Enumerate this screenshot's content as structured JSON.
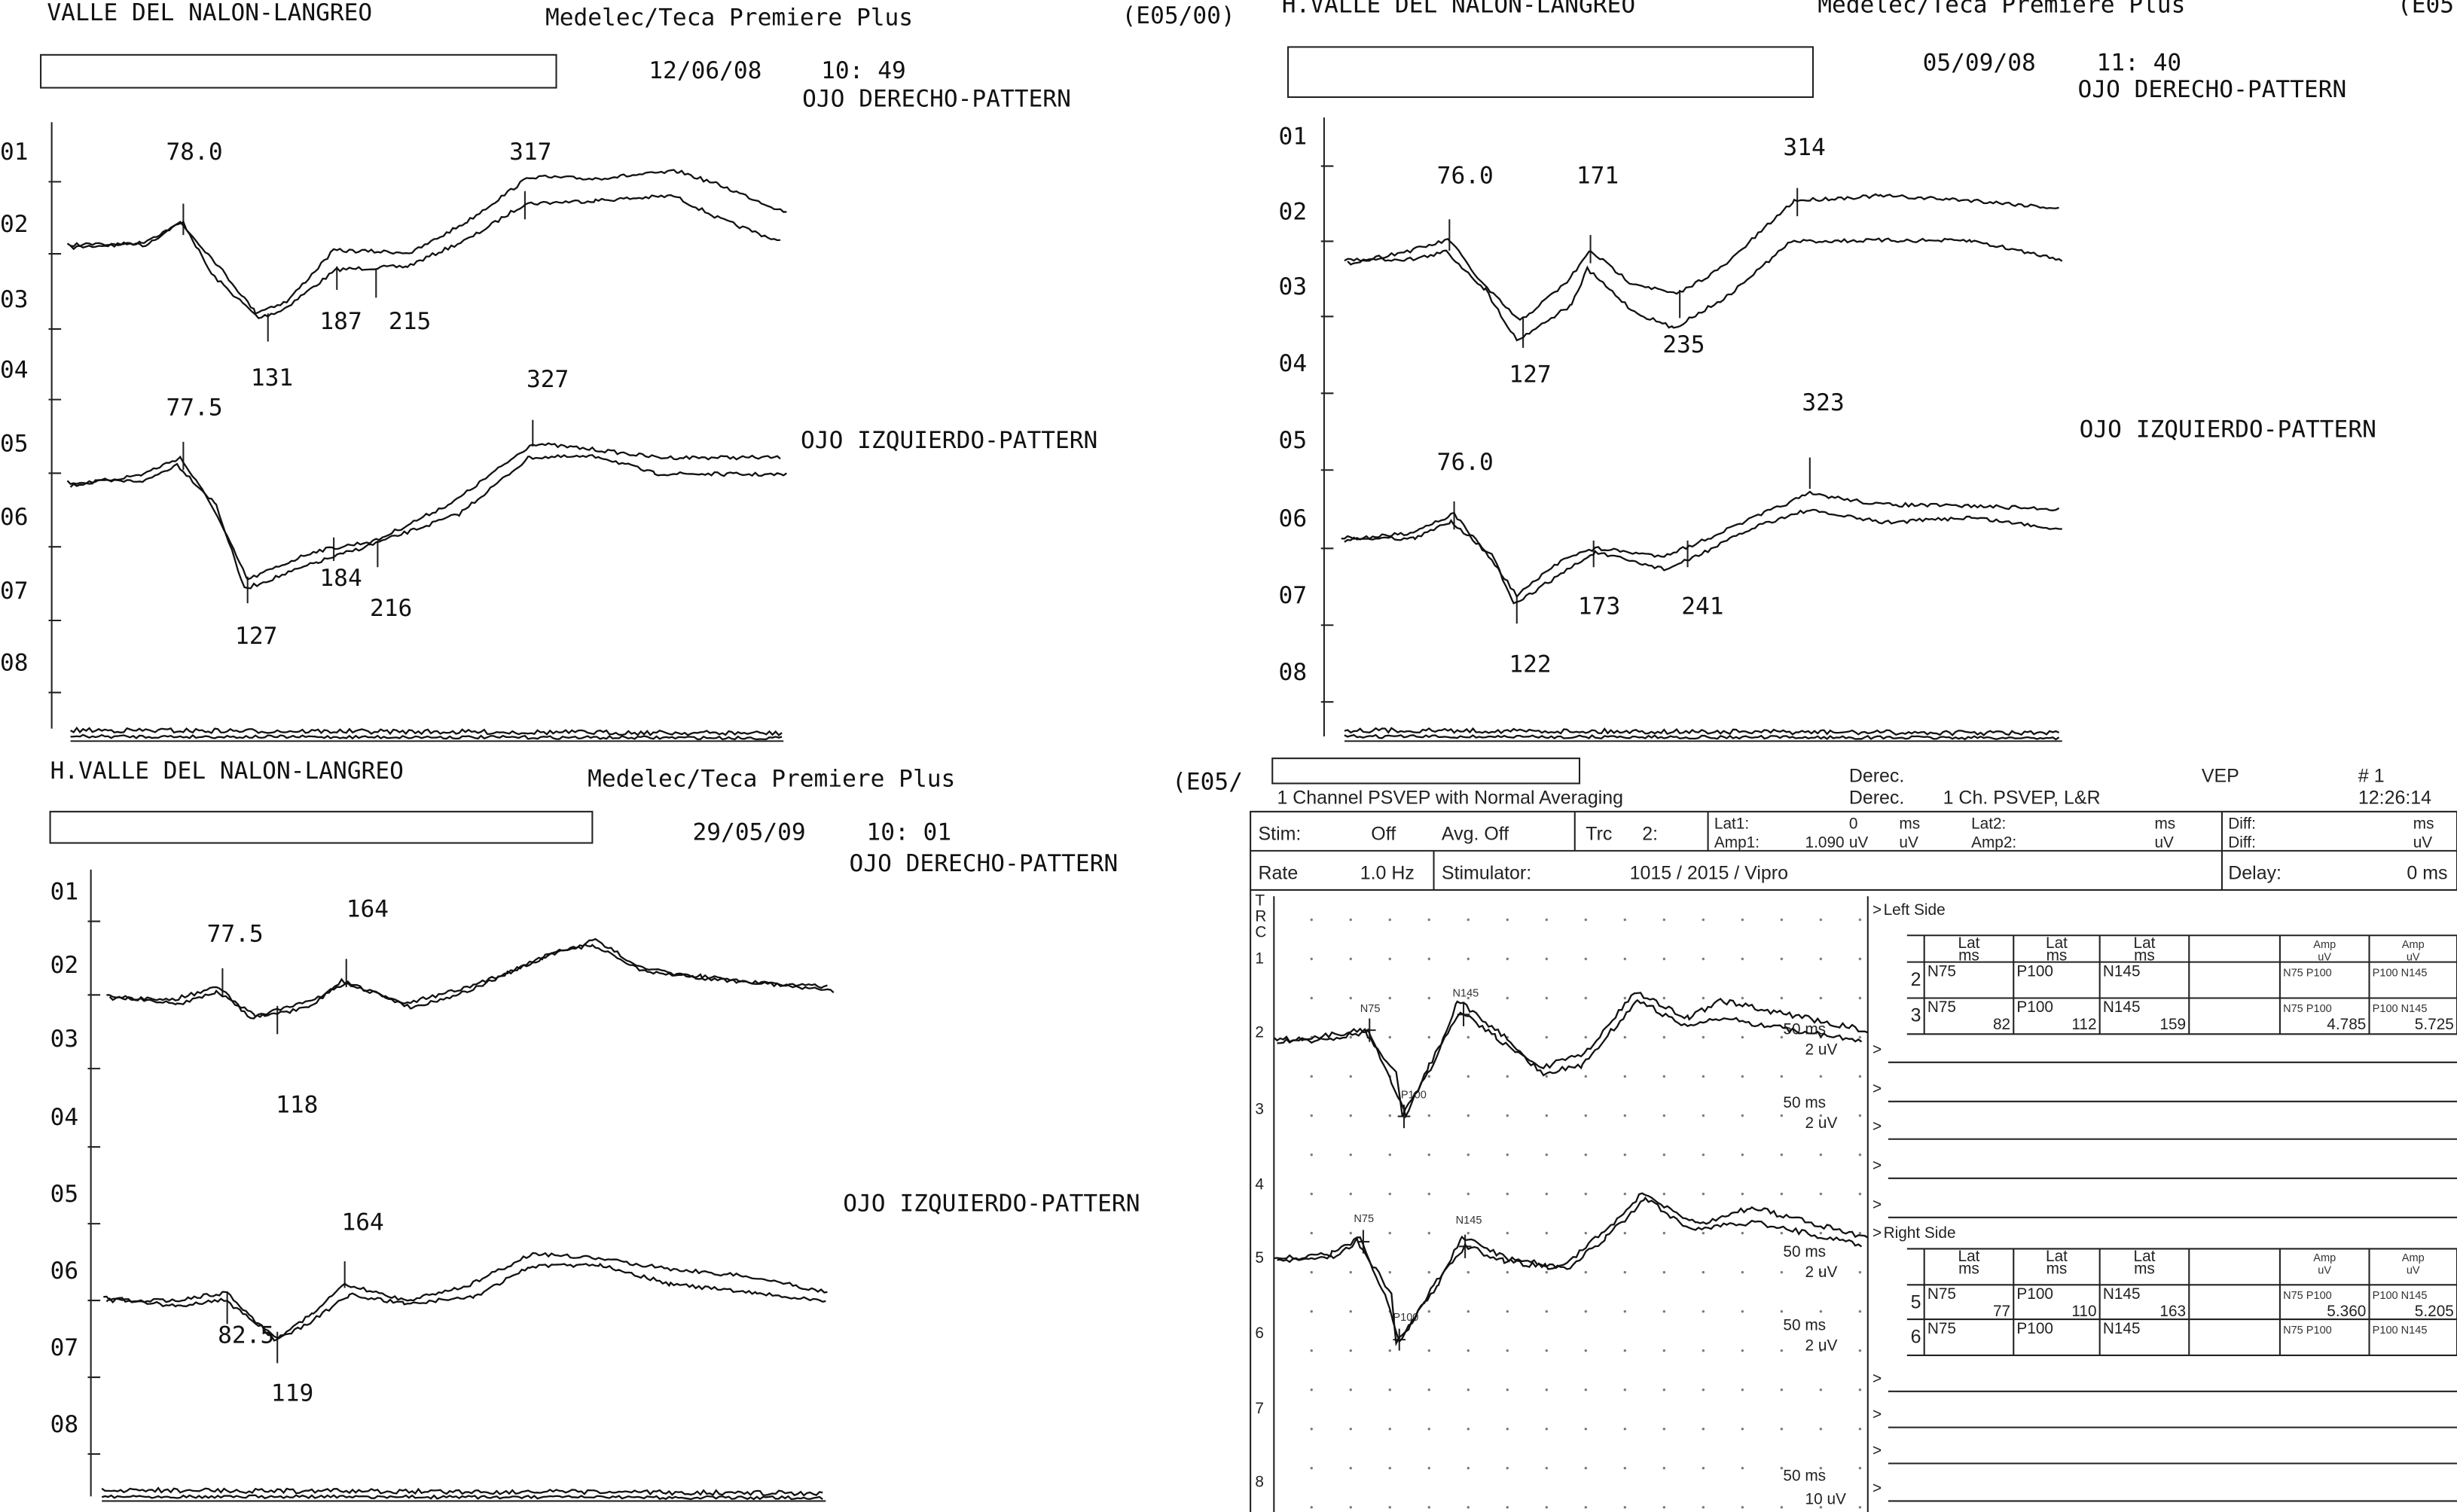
{
  "panels": [
    {
      "hospital": "VALLE DEL NALON-LANGREO",
      "device": "Medelec/Teca Premiere Plus",
      "code": "(E05/00)",
      "date": "12/06/08",
      "time": "10: 49",
      "right_eye": "OJO DERECHO-PATTERN",
      "left_eye": "OJO IZQUIERDO-PATTERN",
      "channels": [
        "01",
        "02",
        "03",
        "04",
        "05",
        "06",
        "07",
        "08"
      ],
      "peaks": [
        "78.0",
        "317",
        "187",
        "215",
        "131",
        "77.5",
        "327",
        "184",
        "216",
        "127"
      ]
    },
    {
      "hospital": "H.VALLE DEL NALON-LANGREO",
      "device": "Medelec/Teca Premiere Plus",
      "code": "(E05",
      "date": "05/09/08",
      "time": "11: 40",
      "right_eye": "OJO DERECHO-PATTERN",
      "left_eye": "OJO IZQUIERDO-PATTERN",
      "channels": [
        "01",
        "02",
        "03",
        "04",
        "05",
        "06",
        "07",
        "08"
      ],
      "peaks": [
        "76.0",
        "171",
        "314",
        "235",
        "127",
        "323",
        "76.0",
        "173",
        "241",
        "122"
      ]
    },
    {
      "hospital": "H.VALLE DEL NALON-LANGREO",
      "device": "Medelec/Teca Premiere Plus",
      "code": "(E05/",
      "date": "29/05/09",
      "time": "10: 01",
      "right_eye": "OJO DERECHO-PATTERN",
      "left_eye": "OJO IZQUIERDO-PATTERN",
      "channels": [
        "01",
        "02",
        "03",
        "04",
        "05",
        "06",
        "07",
        "08"
      ],
      "peaks": [
        "77.5",
        "164",
        "118",
        "164",
        "82.5",
        "119"
      ]
    }
  ],
  "report": {
    "title": "1 Channel PSVEP with Normal Averaging",
    "header": [
      "Derec.",
      "Derec.",
      "1 Ch. PSVEP, L&R",
      "VEP",
      "# 1",
      "12:26:14"
    ],
    "stim_row": [
      "Stim:",
      "Off",
      "Avg. Off",
      "Trc",
      "2:",
      "Lat1:",
      "0",
      "ms",
      "Amp1:",
      "1.090",
      "uV",
      "uV",
      "Lat2:",
      "Amp2:",
      "ms",
      "uV",
      "Diff:",
      "Diff:",
      "ms",
      "uV"
    ],
    "rate_row": [
      "Rate",
      "1.0 Hz",
      "Stimulator:",
      "1015 / 2015 / Vipro",
      "Delay:",
      "0 ms"
    ],
    "trc": [
      "T",
      "R",
      "C"
    ],
    "channels": [
      "1",
      "2",
      "3",
      "4",
      "5",
      "6",
      "7",
      "8"
    ],
    "markers": [
      "N75",
      "N145",
      "P100",
      "N75",
      "N145",
      "P100"
    ],
    "scales": [
      [
        "50 ms",
        "2 uV"
      ],
      [
        "50 ms",
        "2 uV"
      ],
      [
        "50 ms",
        "2 uV"
      ],
      [
        "50 ms",
        "2 uV"
      ],
      [
        "50 ms",
        "10 uV"
      ]
    ],
    "prompt": ">",
    "sides": [
      {
        "title": "Left Side",
        "header": [
          [
            "Lat",
            "ms"
          ],
          [
            "Lat",
            "ms"
          ],
          [
            "Lat",
            "ms"
          ],
          [
            "Amp",
            "uV"
          ],
          [
            "Amp",
            "uV"
          ]
        ],
        "rows": [
          {
            "trace": "2",
            "cells": [
              {
                "label": "N75"
              },
              {
                "label": "P100"
              },
              {
                "label": "N145"
              },
              {
                "label": "N75 P100"
              },
              {
                "label": "P100 N145"
              }
            ]
          },
          {
            "trace": "3",
            "cells": [
              {
                "label": "N75",
                "value": "82"
              },
              {
                "label": "P100",
                "value": "112"
              },
              {
                "label": "N145",
                "value": "159"
              },
              {
                "label": "N75 P100",
                "value": "4.785"
              },
              {
                "label": "P100 N145",
                "value": "5.725"
              }
            ]
          }
        ]
      },
      {
        "title": "Right Side",
        "header": [
          [
            "Lat",
            "ms"
          ],
          [
            "Lat",
            "ms"
          ],
          [
            "Lat",
            "ms"
          ],
          [
            "Amp",
            "uV"
          ],
          [
            "Amp",
            "uV"
          ]
        ],
        "rows": [
          {
            "trace": "5",
            "cells": [
              {
                "label": "N75",
                "value": "77"
              },
              {
                "label": "P100",
                "value": "110"
              },
              {
                "label": "N145",
                "value": "163"
              },
              {
                "label": "N75 P100",
                "value": "5.360"
              },
              {
                "label": "P100 N145",
                "value": "5.205"
              }
            ]
          },
          {
            "trace": "6",
            "cells": [
              {
                "label": "N75"
              },
              {
                "label": "P100"
              },
              {
                "label": "N145"
              },
              {
                "label": "N75 P100"
              },
              {
                "label": "P100 N145"
              }
            ]
          }
        ]
      }
    ]
  }
}
